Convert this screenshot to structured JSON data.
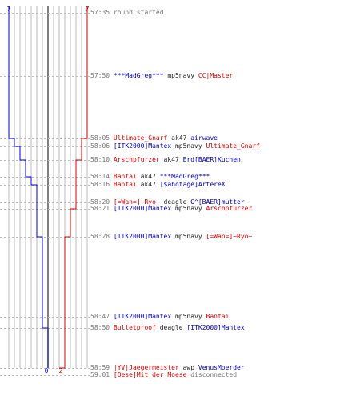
{
  "colors": {
    "blue_team": "#0000cc",
    "red_team": "#cc0000",
    "time": "#777777",
    "grid": "#bbbbbb",
    "center_line": "#555555"
  },
  "scores": {
    "blue_start": "7",
    "red_start": "7",
    "blue_end": "0",
    "red_end": "2"
  },
  "blue_steps": [
    7,
    7,
    6,
    5,
    4,
    3,
    2,
    2,
    2,
    1,
    1,
    0,
    0,
    0
  ],
  "red_steps": [
    7,
    7,
    6,
    6,
    5,
    5,
    5,
    5,
    4,
    3,
    3,
    3,
    2,
    2
  ],
  "events": [
    {
      "time": "57:35",
      "parts": [
        {
          "text": "round started",
          "color": "gray"
        }
      ]
    },
    {
      "time": "57:50",
      "parts": [
        {
          "text": "***MadGreg***",
          "color": "blue"
        },
        {
          "text": " mp5navy ",
          "color": "black"
        },
        {
          "text": "CC|Master",
          "color": "red"
        }
      ]
    },
    {
      "time": "58:05",
      "parts": [
        {
          "text": "Ultimate_Gnarf",
          "color": "red"
        },
        {
          "text": " ak47 ",
          "color": "black"
        },
        {
          "text": "airwave",
          "color": "blue"
        }
      ]
    },
    {
      "time": "58:06",
      "parts": [
        {
          "text": "[ITK2000]Mantex",
          "color": "blue"
        },
        {
          "text": " mp5navy ",
          "color": "black"
        },
        {
          "text": "Ultimate_Gnarf",
          "color": "red"
        }
      ]
    },
    {
      "time": "58:10",
      "parts": [
        {
          "text": "Arschpfurzer",
          "color": "red"
        },
        {
          "text": " ak47 ",
          "color": "black"
        },
        {
          "text": "Erd[BAER]Kuchen",
          "color": "blue"
        }
      ]
    },
    {
      "time": "58:14",
      "parts": [
        {
          "text": "Bantai",
          "color": "red"
        },
        {
          "text": " ak47 ",
          "color": "black"
        },
        {
          "text": "***MadGreg***",
          "color": "blue"
        }
      ]
    },
    {
      "time": "58:16",
      "parts": [
        {
          "text": "Bantai",
          "color": "red"
        },
        {
          "text": " ak47 ",
          "color": "black"
        },
        {
          "text": "[$abotage]ArtereX",
          "color": "blue"
        }
      ]
    },
    {
      "time": "58:20",
      "parts": [
        {
          "text": "[=Wan=]~Ryo~",
          "color": "red"
        },
        {
          "text": " deagle ",
          "color": "black"
        },
        {
          "text": "G^[BAER]mutter",
          "color": "blue"
        }
      ]
    },
    {
      "time": "58:21",
      "parts": [
        {
          "text": "[ITK2000]Mantex",
          "color": "blue"
        },
        {
          "text": " mp5navy ",
          "color": "black"
        },
        {
          "text": "Arschpfurzer",
          "color": "red"
        }
      ]
    },
    {
      "time": "58:28",
      "parts": [
        {
          "text": "[ITK2000]Mantex",
          "color": "blue"
        },
        {
          "text": " mp5navy ",
          "color": "black"
        },
        {
          "text": "[=Wan=]~Ryo~",
          "color": "red"
        }
      ]
    },
    {
      "time": "58:47",
      "parts": [
        {
          "text": "[ITK2000]Mantex",
          "color": "blue"
        },
        {
          "text": " mp5navy ",
          "color": "black"
        },
        {
          "text": "Bantai",
          "color": "red"
        }
      ]
    },
    {
      "time": "58:50",
      "parts": [
        {
          "text": "Bulletproof",
          "color": "red"
        },
        {
          "text": " deagle ",
          "color": "black"
        },
        {
          "text": "[ITK2000]Mantex",
          "color": "blue"
        }
      ]
    },
    {
      "time": "58:59",
      "parts": [
        {
          "text": "|YV|Jaegermeister",
          "color": "red"
        },
        {
          "text": " awp ",
          "color": "black"
        },
        {
          "text": "VenusMoerder",
          "color": "blue"
        }
      ]
    },
    {
      "time": "59:01",
      "parts": [
        {
          "text": "[Oese]Mit_der_Moese",
          "color": "red"
        },
        {
          "text": " disconnected",
          "color": "gray"
        }
      ]
    }
  ]
}
